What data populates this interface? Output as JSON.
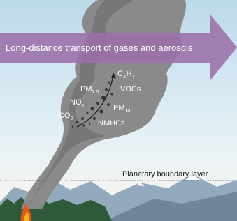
{
  "banner": {
    "text": "Long-distance transport of gases and aerosols"
  },
  "boundary": {
    "label": "Planetary boundary layer"
  },
  "species": [
    {
      "main": "C",
      "sub": "X",
      "main2": "H",
      "sub2": "Y"
    },
    {
      "main": "PM",
      "sub": "2.5"
    },
    {
      "main": "VOCs"
    },
    {
      "main": "NO",
      "sub": "x"
    },
    {
      "main": "PM",
      "sub": "10"
    },
    {
      "main": "CO",
      "sub": "2"
    },
    {
      "main": "NMHCs"
    }
  ]
}
